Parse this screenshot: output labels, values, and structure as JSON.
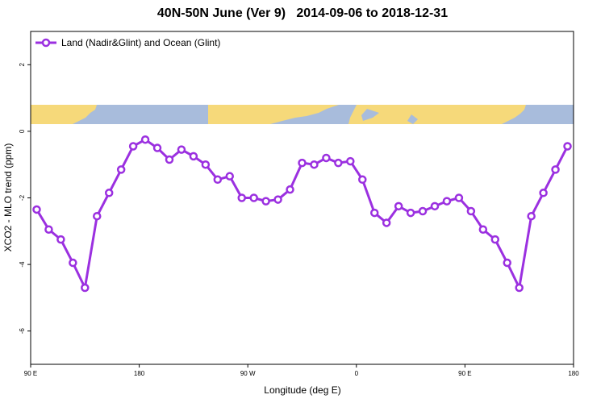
{
  "chart_data": {
    "type": "line",
    "title": "40N-50N June (Ver 9)   2014-09-06 to 2018-12-31",
    "xlabel": "Longitude (deg E)",
    "ylabel": "XCO2 - MLO trend (ppm)",
    "xlim": [
      90,
      540
    ],
    "ylim": [
      -7,
      3
    ],
    "x_ticks": [
      {
        "value": 90,
        "label": "90 E"
      },
      {
        "value": 180,
        "label": "180"
      },
      {
        "value": 270,
        "label": "90 W"
      },
      {
        "value": 360,
        "label": "0"
      },
      {
        "value": 450,
        "label": "90 E"
      },
      {
        "value": 540,
        "label": "180"
      }
    ],
    "y_ticks": [
      {
        "value": 2,
        "label": "2"
      },
      {
        "value": 0,
        "label": "0"
      },
      {
        "value": -2,
        "label": "-2"
      },
      {
        "value": -4,
        "label": "-4"
      },
      {
        "value": -6,
        "label": "-6"
      }
    ],
    "legend_position": "top-left",
    "grid": false,
    "series_color": "#9b30e0",
    "series": [
      {
        "name": "Land (Nadir&Glint) and Ocean (Glint)",
        "x": [
          95,
          105,
          115,
          125,
          135,
          145,
          155,
          165,
          175,
          185,
          195,
          205,
          215,
          225,
          235,
          245,
          255,
          265,
          275,
          285,
          295,
          305,
          315,
          325,
          335,
          345,
          355,
          365,
          375,
          385,
          395,
          405,
          415,
          425,
          435,
          445,
          455,
          465,
          475,
          485,
          495,
          505,
          515,
          525,
          535
        ],
        "y": [
          -2.35,
          -2.95,
          -3.25,
          -3.95,
          -4.7,
          -2.55,
          -1.85,
          -1.15,
          -0.45,
          -0.25,
          -0.5,
          -0.85,
          -0.55,
          -0.75,
          -1.0,
          -1.45,
          -1.35,
          -2.0,
          -2.0,
          -2.1,
          -2.05,
          -1.75,
          -0.95,
          -1.0,
          -0.8,
          -0.95,
          -0.9,
          -1.45,
          -2.45,
          -2.75,
          -2.25,
          -2.45,
          -2.4,
          -2.25,
          -2.1,
          -2.0,
          -2.4,
          -2.95,
          -3.25,
          -3.95,
          -4.7,
          -2.55,
          -1.85,
          -1.15,
          -0.45
        ]
      }
    ]
  }
}
